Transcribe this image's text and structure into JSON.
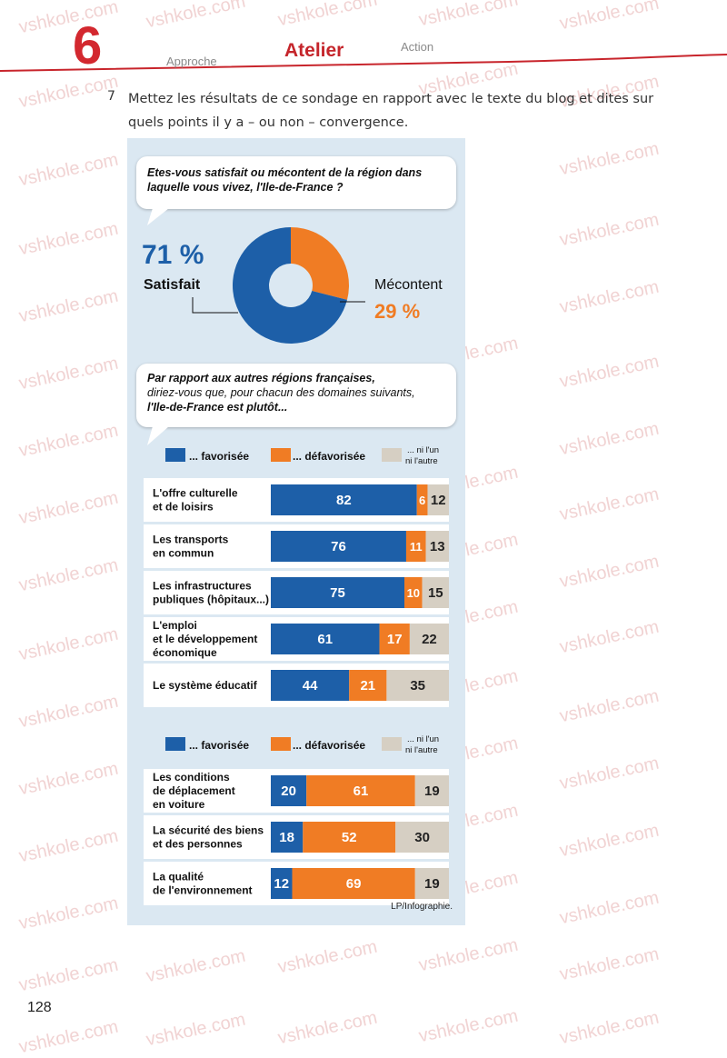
{
  "header": {
    "unit_number": "6",
    "tabs": [
      "Approche",
      "Atelier",
      "Action"
    ],
    "accent": "#d3282f"
  },
  "exercise": {
    "number": "7",
    "text": "Mettez les résultats de ce sondage en rapport avec le texte du blog et dites sur quels points il y a – ou non – convergence."
  },
  "watermark": "vshkole.com",
  "page_number": "128",
  "colors": {
    "favorisee": "#1d5fa8",
    "defavorisee": "#f07c24",
    "neutral": "#d6cfc3",
    "background": "#dbe8f2"
  },
  "chart_data": [
    {
      "type": "pie",
      "title": "Etes-vous satisfait ou mécontent de la région dans laquelle vous vivez, l'Ile-de-France ?",
      "categories": [
        "Satisfait",
        "Mécontent"
      ],
      "values": [
        71,
        29
      ],
      "value_labels": [
        "71 %",
        "29 %"
      ],
      "colors": [
        "#1d5fa8",
        "#f07c24"
      ]
    },
    {
      "type": "bar",
      "stacked": true,
      "orientation": "horizontal",
      "question_parts": [
        "Par rapport aux autres régions françaises,",
        "diriez-vous que, pour chacun des domaines suivants,",
        "l'Ile-de-France est plutôt..."
      ],
      "legend": [
        "... favorisée",
        "... défavorisée",
        "... ni l'un ni l'autre"
      ],
      "legend_neutral_lines": [
        "... ni l'un",
        "ni l'autre"
      ],
      "categories": [
        [
          "L'offre culturelle",
          "et de loisirs"
        ],
        [
          "Les transports",
          "en commun"
        ],
        [
          "Les infrastructures",
          "publiques (hôpitaux...)"
        ],
        [
          "L'emploi",
          "et le développement",
          "économique"
        ],
        [
          "Le système éducatif"
        ]
      ],
      "series": [
        {
          "name": "... favorisée",
          "values": [
            82,
            76,
            75,
            61,
            44
          ]
        },
        {
          "name": "... défavorisée",
          "values": [
            6,
            11,
            10,
            17,
            21
          ]
        },
        {
          "name": "... ni l'un ni l'autre",
          "values": [
            12,
            13,
            15,
            22,
            35
          ]
        }
      ]
    },
    {
      "type": "bar",
      "stacked": true,
      "orientation": "horizontal",
      "legend": [
        "... favorisée",
        "... défavorisée",
        "... ni l'un ni l'autre"
      ],
      "legend_neutral_lines": [
        "... ni l'un",
        "ni l'autre"
      ],
      "categories": [
        [
          "Les conditions",
          "de déplacement",
          "en voiture"
        ],
        [
          "La sécurité des biens",
          "et des personnes"
        ],
        [
          "La qualité",
          "de l'environnement"
        ]
      ],
      "series": [
        {
          "name": "... favorisée",
          "values": [
            20,
            18,
            12
          ]
        },
        {
          "name": "... défavorisée",
          "values": [
            61,
            52,
            69
          ]
        },
        {
          "name": "... ni l'un ni l'autre",
          "values": [
            19,
            30,
            19
          ]
        }
      ]
    }
  ],
  "source": "LP/Infographie."
}
